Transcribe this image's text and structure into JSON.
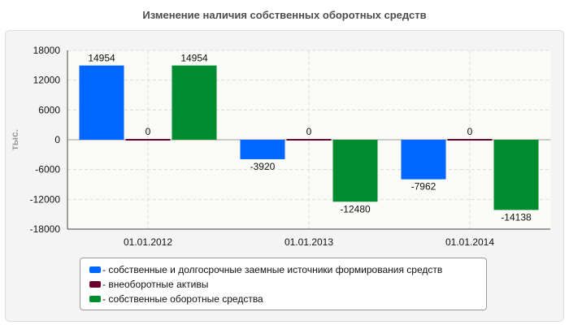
{
  "title": "Изменение наличия собственных оборотных средств",
  "chart_data": {
    "type": "bar",
    "title": "Изменение наличия собственных оборотных средств",
    "ylabel": "тыс.",
    "xlabel": "",
    "categories": [
      "01.01.2012",
      "01.01.2013",
      "01.01.2014"
    ],
    "ylim": [
      -18000,
      18000
    ],
    "yticks": [
      18000,
      12000,
      6000,
      0,
      -6000,
      -12000,
      -18000
    ],
    "grid": true,
    "legend_position": "bottom",
    "series": [
      {
        "name": "собственные и долгосрочные заемные источники формирования средств",
        "color": "#0066ff",
        "values": [
          14954,
          -3920,
          -7962
        ]
      },
      {
        "name": "внеоборотные активы",
        "color": "#6b0030",
        "values": [
          0,
          0,
          0
        ]
      },
      {
        "name": "собственные оборотные средства",
        "color": "#008c2e",
        "values": [
          14954,
          -12480,
          -14138
        ]
      }
    ]
  },
  "legend": {
    "items": [
      {
        "label": "- собственные и долгосрочные заемные источники формирования средств",
        "color": "#0066ff"
      },
      {
        "label": "- внеоборотные активы",
        "color": "#6b0030"
      },
      {
        "label": "- собственные оборотные средства",
        "color": "#008c2e"
      }
    ]
  }
}
